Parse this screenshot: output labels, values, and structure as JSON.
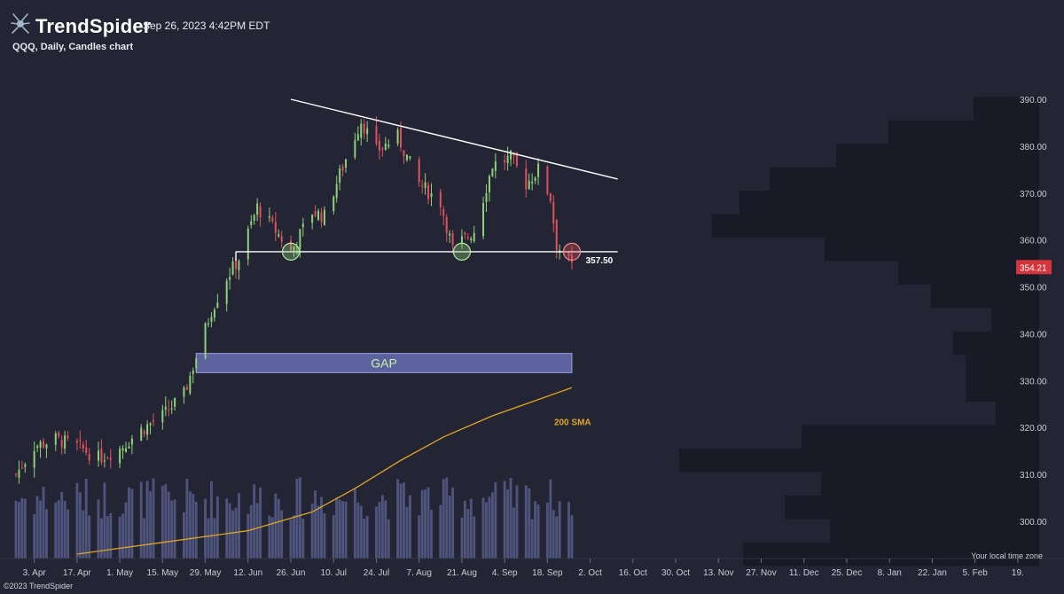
{
  "header": {
    "brand": "TrendSpider",
    "timestamp": "Sep 26, 2023 4:42PM EDT",
    "chart_title": "QQQ, Daily, Candles chart"
  },
  "footer": {
    "copyright": "©2023 TrendSpider",
    "timezone_label": "Your local time zone"
  },
  "icons": {
    "logo": "spider-logo-icon"
  },
  "colors": {
    "background": "#232534",
    "up": "#8fd07a",
    "down": "#e0515d",
    "volume": "#565d8a",
    "sma": "#e0a526",
    "gap_fill": "#6b70b8",
    "profile": "#181a25",
    "price_tag": "#d4343c"
  },
  "chart_data": {
    "type": "candlestick",
    "symbol": "QQQ",
    "interval": "Daily",
    "y_axis": {
      "ticks": [
        300,
        310,
        320,
        330,
        340,
        350,
        360,
        370,
        380,
        390
      ],
      "tick_labels": [
        "300.00",
        "310.00",
        "320.00",
        "330.00",
        "340.00",
        "350.00",
        "360.00",
        "370.00",
        "380.00",
        "390.00"
      ],
      "range": [
        293,
        395
      ]
    },
    "x_axis": {
      "start_date": "2023-03-28",
      "end_date": "2024-02-26",
      "ticks": [
        {
          "label": "3. Apr",
          "date": "2023-04-03"
        },
        {
          "label": "17. Apr",
          "date": "2023-04-17"
        },
        {
          "label": "1. May",
          "date": "2023-05-01"
        },
        {
          "label": "15. May",
          "date": "2023-05-15"
        },
        {
          "label": "29. May",
          "date": "2023-05-29"
        },
        {
          "label": "12. Jun",
          "date": "2023-06-12"
        },
        {
          "label": "26. Jun",
          "date": "2023-06-26"
        },
        {
          "label": "10. Jul",
          "date": "2023-07-10"
        },
        {
          "label": "24. Jul",
          "date": "2023-07-24"
        },
        {
          "label": "7. Aug",
          "date": "2023-08-07"
        },
        {
          "label": "21. Aug",
          "date": "2023-08-21"
        },
        {
          "label": "4. Sep",
          "date": "2023-09-04"
        },
        {
          "label": "18. Sep",
          "date": "2023-09-18"
        },
        {
          "label": "2. Oct",
          "date": "2023-10-02"
        },
        {
          "label": "16. Oct",
          "date": "2023-10-16"
        },
        {
          "label": "30. Oct",
          "date": "2023-10-30"
        },
        {
          "label": "13. Nov",
          "date": "2023-11-13"
        },
        {
          "label": "27. Nov",
          "date": "2023-11-27"
        },
        {
          "label": "11. Dec",
          "date": "2023-12-11"
        },
        {
          "label": "25. Dec",
          "date": "2023-12-25"
        },
        {
          "label": "8. Jan",
          "date": "2024-01-08"
        },
        {
          "label": "22. Jan",
          "date": "2024-01-22"
        },
        {
          "label": "5. Feb",
          "date": "2024-02-05"
        },
        {
          "label": "19.",
          "date": "2024-02-19"
        }
      ]
    },
    "candle_width": "Daily",
    "trend_points": [
      [
        "2023-03-28",
        310.0
      ],
      [
        "2023-04-03",
        316.0
      ],
      [
        "2023-04-10",
        317.5
      ],
      [
        "2023-04-17",
        316.0
      ],
      [
        "2023-04-24",
        313.5
      ],
      [
        "2023-05-01",
        315.5
      ],
      [
        "2023-05-08",
        319.5
      ],
      [
        "2023-05-15",
        322.5
      ],
      [
        "2023-05-22",
        327.0
      ],
      [
        "2023-05-26",
        335.0
      ],
      [
        "2023-05-31",
        345.0
      ],
      [
        "2023-06-05",
        352.0
      ],
      [
        "2023-06-09",
        356.0
      ],
      [
        "2023-06-15",
        367.0
      ],
      [
        "2023-06-21",
        362.0
      ],
      [
        "2023-06-26",
        357.5
      ],
      [
        "2023-07-03",
        366.0
      ],
      [
        "2023-07-07",
        365.0
      ],
      [
        "2023-07-12",
        374.0
      ],
      [
        "2023-07-19",
        385.5
      ],
      [
        "2023-07-24",
        379.0
      ],
      [
        "2023-07-31",
        382.0
      ],
      [
        "2023-08-07",
        372.0
      ],
      [
        "2023-08-14",
        368.0
      ],
      [
        "2023-08-18",
        358.0
      ],
      [
        "2023-08-25",
        362.0
      ],
      [
        "2023-08-31",
        376.0
      ],
      [
        "2023-09-06",
        377.5
      ],
      [
        "2023-09-11",
        372.0
      ],
      [
        "2023-09-15",
        375.0
      ],
      [
        "2023-09-19",
        369.0
      ],
      [
        "2023-09-21",
        359.0
      ],
      [
        "2023-09-26",
        354.21
      ]
    ],
    "last_price": 354.21,
    "last_price_label": "354.21",
    "volume_scale": [
      0.48,
      1.0
    ],
    "sma200": {
      "label": "200 SMA",
      "points": [
        [
          "2023-04-17",
          293.0
        ],
        [
          "2023-05-15",
          295.5
        ],
        [
          "2023-06-12",
          298.0
        ],
        [
          "2023-07-03",
          302.0
        ],
        [
          "2023-07-17",
          307.0
        ],
        [
          "2023-08-01",
          313.0
        ],
        [
          "2023-08-15",
          318.0
        ],
        [
          "2023-08-31",
          322.5
        ],
        [
          "2023-09-26",
          328.5
        ]
      ]
    },
    "annotations": {
      "resistance": {
        "from": [
          "2023-06-26",
          390.0
        ],
        "to": [
          "2023-10-11",
          373.0
        ]
      },
      "support": {
        "from": [
          "2023-06-08",
          357.5
        ],
        "to": [
          "2023-10-11",
          357.5
        ],
        "label": "357.50"
      },
      "touch_circles": [
        [
          "2023-06-26",
          357.5
        ],
        [
          "2023-08-21",
          357.5
        ],
        [
          "2023-09-26",
          357.5
        ]
      ],
      "gap": {
        "from": "2023-05-26",
        "to": "2023-09-26",
        "top": 335.8,
        "bottom": 331.7,
        "label": "GAP"
      }
    },
    "volume_profile": [
      {
        "price": 388,
        "size": 74
      },
      {
        "price": 383,
        "size": 170
      },
      {
        "price": 378,
        "size": 229
      },
      {
        "price": 373,
        "size": 304
      },
      {
        "price": 368,
        "size": 338
      },
      {
        "price": 363,
        "size": 369
      },
      {
        "price": 358,
        "size": 242
      },
      {
        "price": 353,
        "size": 159
      },
      {
        "price": 348,
        "size": 122
      },
      {
        "price": 343,
        "size": 54
      },
      {
        "price": 338,
        "size": 97
      },
      {
        "price": 333,
        "size": 83
      },
      {
        "price": 328,
        "size": 83
      },
      {
        "price": 323,
        "size": 49
      },
      {
        "price": 318,
        "size": 268
      },
      {
        "price": 313,
        "size": 406
      },
      {
        "price": 308,
        "size": 246
      },
      {
        "price": 303,
        "size": 287
      },
      {
        "price": 298,
        "size": 236
      },
      {
        "price": 293,
        "size": 334
      }
    ],
    "grid": false
  }
}
